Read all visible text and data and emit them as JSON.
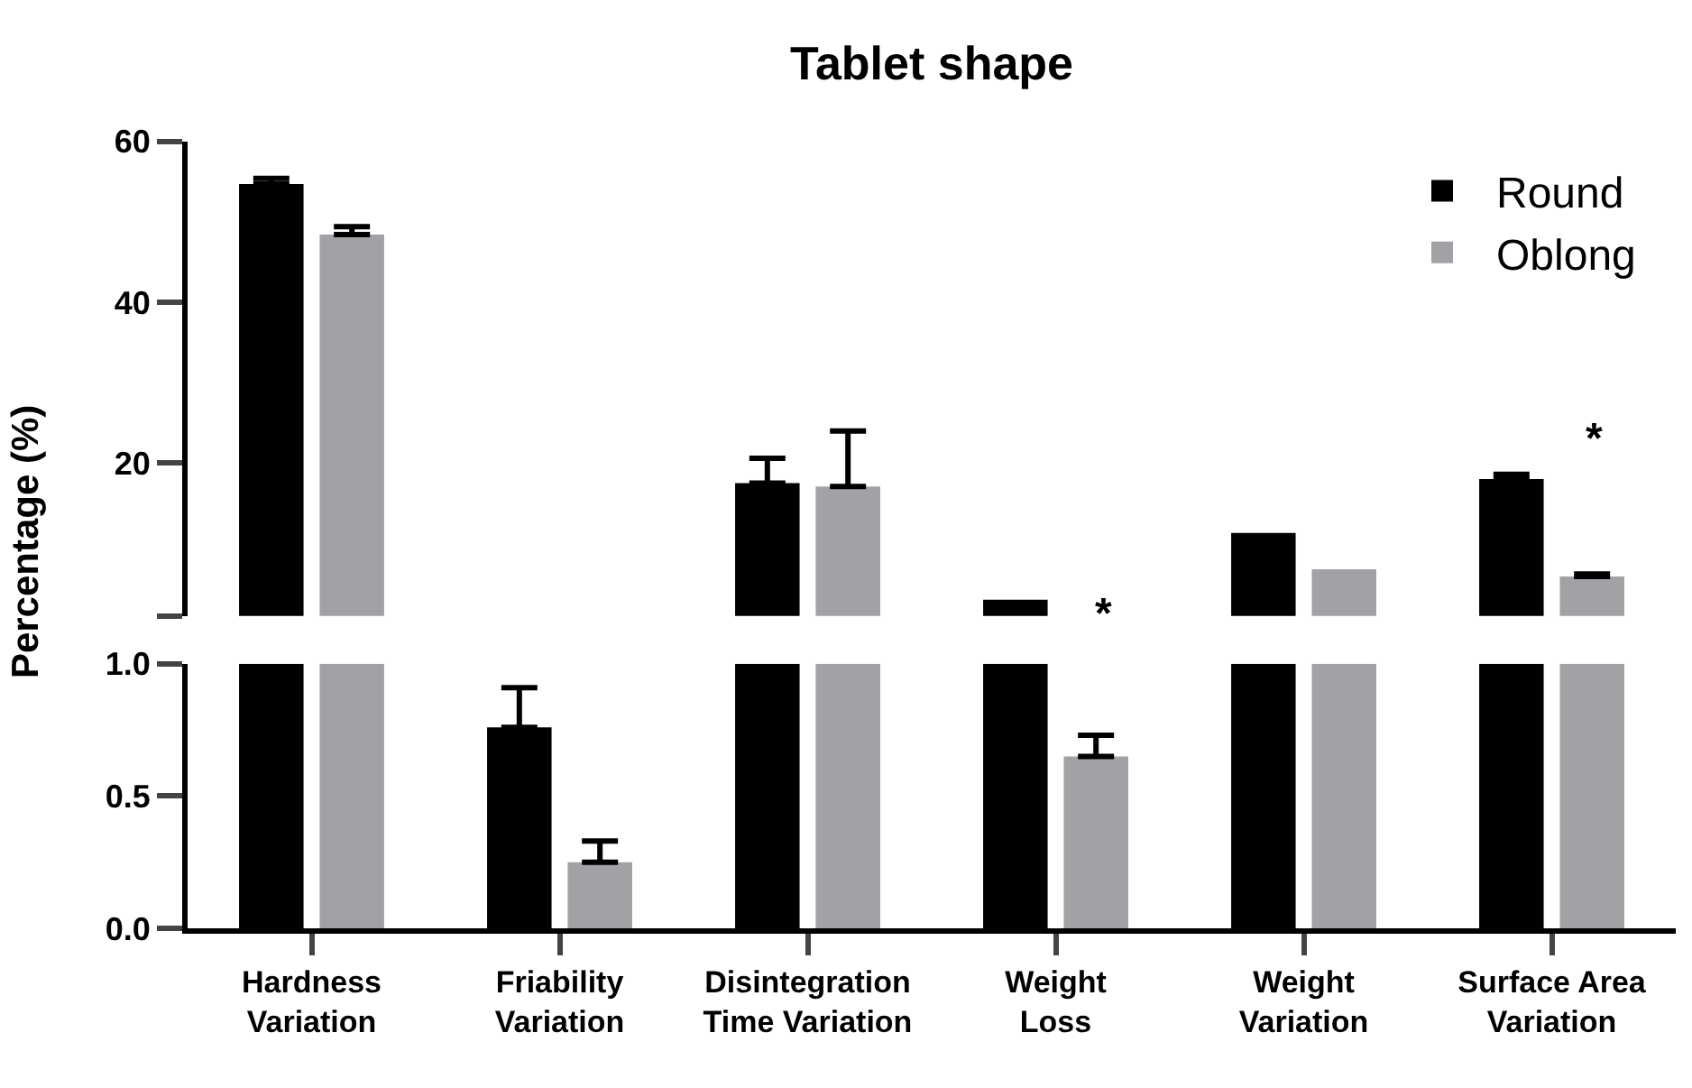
{
  "chart_data": [
    {
      "type": "bar",
      "title": "Tablet shape",
      "ylabel": "Percentage (%)",
      "series": [
        {
          "name": "Round",
          "color": "#000000",
          "values": [
            54.7,
            null,
            17.5,
            3.0,
            11.3,
            18.0
          ],
          "errors": [
            [
              54.7,
              55.4
            ],
            null,
            [
              17.5,
              20.6
            ],
            null,
            null,
            [
              18.0,
              18.6
            ]
          ]
        },
        {
          "name": "Oblong",
          "color": "#a2a2a6",
          "values": [
            48.4,
            null,
            17.1,
            null,
            6.8,
            5.9
          ],
          "errors": [
            [
              48.4,
              49.4
            ],
            null,
            [
              17.1,
              24.0
            ],
            null,
            null,
            [
              5.9,
              6.2
            ]
          ]
        }
      ],
      "ylim": [
        1,
        60
      ],
      "yticks": [
        {
          "value": 1,
          "label": null
        },
        20,
        40,
        60
      ],
      "annotations": [
        "*",
        "*"
      ],
      "legend": "top right",
      "tick_labels": "y"
    },
    {
      "type": "bar",
      "categories": [
        "Hardness\nVariation",
        "Friability\nVariation",
        "Disintegration\nTime Variation",
        "Weight\nLoss",
        "Weight\nVariation",
        "Surface Area\nVariation"
      ],
      "series": [
        {
          "color": "#000000",
          "values": [
            1.0,
            0.76,
            1.0,
            1.0,
            1.0,
            1.0
          ],
          "errors": [
            null,
            [
              0.76,
              0.91
            ],
            null,
            null,
            null,
            null
          ]
        },
        {
          "color": "#a2a2a6",
          "values": [
            1.0,
            0.25,
            1.0,
            0.65,
            1.0,
            1.0
          ],
          "errors": [
            null,
            [
              0.25,
              0.33
            ],
            null,
            [
              0.65,
              0.73
            ],
            null,
            null
          ]
        }
      ],
      "ylim": [
        0,
        1.0
      ],
      "yticks": [
        {
          "value": 0,
          "label": "0.0"
        },
        {
          "value": 0.5,
          "label": "0.5"
        },
        {
          "value": 1.0,
          "label": "1.0"
        }
      ]
    }
  ]
}
